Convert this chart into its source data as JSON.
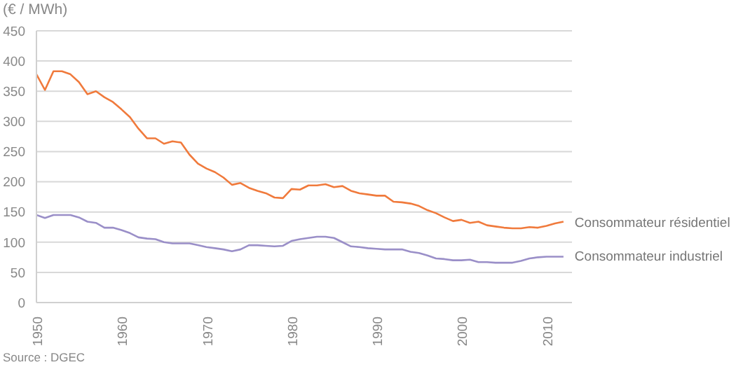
{
  "chart_data": {
    "type": "line",
    "ylabel": "(€ / MWh)",
    "annotations": [
      "Source : DGEC"
    ],
    "x": [
      1950,
      1951,
      1952,
      1953,
      1954,
      1955,
      1956,
      1957,
      1958,
      1959,
      1960,
      1961,
      1962,
      1963,
      1964,
      1965,
      1966,
      1967,
      1968,
      1969,
      1970,
      1971,
      1972,
      1973,
      1974,
      1975,
      1976,
      1977,
      1978,
      1979,
      1980,
      1981,
      1982,
      1983,
      1984,
      1985,
      1986,
      1987,
      1988,
      1989,
      1990,
      1991,
      1992,
      1993,
      1994,
      1995,
      1996,
      1997,
      1998,
      1999,
      2000,
      2001,
      2002,
      2003,
      2004,
      2005,
      2006,
      2007,
      2008,
      2009,
      2010,
      2011,
      2012
    ],
    "series": [
      {
        "name": "Consommateur résidentiel",
        "color": "#f07a3c",
        "values": [
          378,
          352,
          383,
          383,
          378,
          365,
          345,
          350,
          340,
          332,
          320,
          307,
          288,
          272,
          272,
          263,
          267,
          265,
          245,
          230,
          222,
          216,
          207,
          195,
          198,
          190,
          185,
          181,
          174,
          173,
          188,
          187,
          194,
          194,
          196,
          191,
          193,
          185,
          181,
          179,
          177,
          177,
          167,
          166,
          164,
          160,
          153,
          148,
          141,
          135,
          137,
          132,
          134,
          128,
          126,
          124,
          123,
          123,
          125,
          124,
          127,
          131,
          134
        ]
      },
      {
        "name": "Consommateur industriel",
        "color": "#9a8fc8",
        "values": [
          145,
          140,
          145,
          145,
          145,
          141,
          134,
          132,
          124,
          124,
          120,
          115,
          108,
          106,
          105,
          100,
          98,
          98,
          98,
          95,
          92,
          90,
          88,
          85,
          88,
          95,
          95,
          94,
          93,
          94,
          102,
          105,
          107,
          109,
          109,
          107,
          100,
          93,
          92,
          90,
          89,
          88,
          88,
          88,
          84,
          82,
          78,
          73,
          72,
          70,
          70,
          71,
          67,
          67,
          66,
          66,
          66,
          69,
          73,
          75,
          76,
          76,
          76
        ]
      }
    ],
    "xlim": [
      1950,
      2013
    ],
    "xticks": [
      1950,
      1960,
      1970,
      1980,
      1990,
      2000,
      2010
    ],
    "ylim": [
      0,
      450
    ],
    "yticks": [
      0,
      50,
      100,
      150,
      200,
      250,
      300,
      350,
      400,
      450
    ],
    "grid": "y",
    "legend": false
  }
}
